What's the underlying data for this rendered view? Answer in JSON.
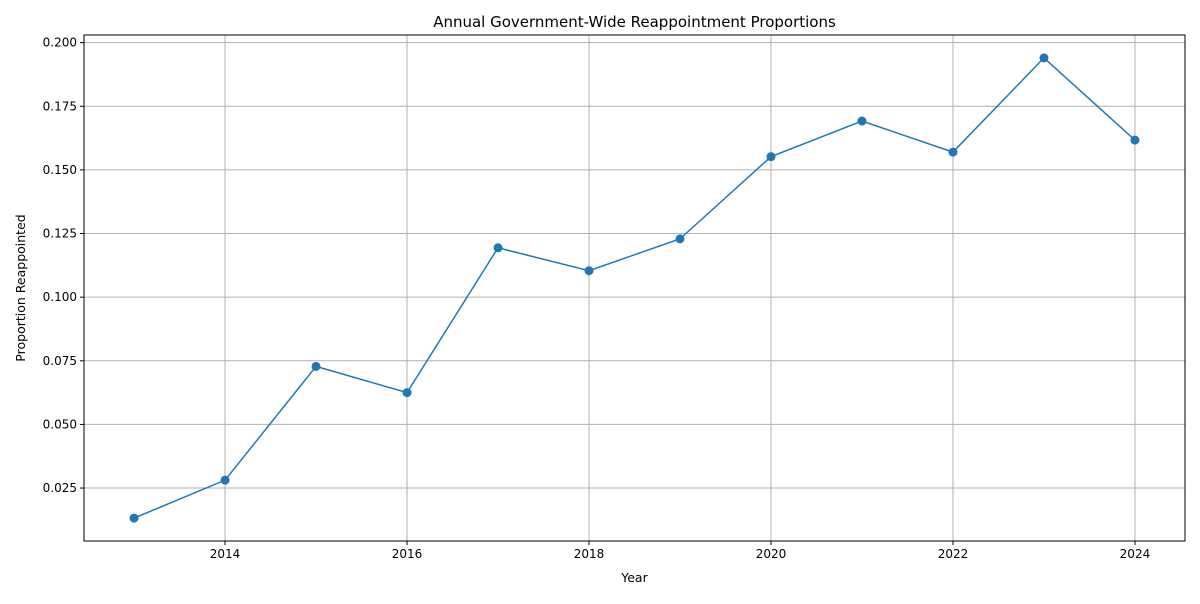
{
  "chart_data": {
    "type": "line",
    "title": "Annual Government-Wide Reappointment Proportions",
    "xlabel": "Year",
    "ylabel": "Proportion Reappointed",
    "x": [
      2013,
      2014,
      2015,
      2016,
      2017,
      2018,
      2019,
      2020,
      2021,
      2022,
      2023,
      2024
    ],
    "series": [
      {
        "values": [
          0.0132,
          0.0281,
          0.0728,
          0.0625,
          0.1194,
          0.1104,
          0.1229,
          0.1552,
          0.1692,
          0.157,
          0.194,
          0.1617
        ]
      }
    ],
    "xlim": [
      2012.45,
      2024.55
    ],
    "ylim": [
      0.0042,
      0.203
    ],
    "x_ticks": [
      2014,
      2016,
      2018,
      2020,
      2022,
      2024
    ],
    "x_tick_labels": [
      "2014",
      "2016",
      "2018",
      "2020",
      "2022",
      "2024"
    ],
    "y_ticks": [
      0.025,
      0.05,
      0.075,
      0.1,
      0.125,
      0.15,
      0.175,
      0.2
    ],
    "y_tick_labels": [
      "0.025",
      "0.050",
      "0.075",
      "0.100",
      "0.125",
      "0.150",
      "0.175",
      "0.200"
    ],
    "grid": true,
    "markers": "circle",
    "colors": {
      "line": "#1f77b4",
      "grid": "#b0b0b0",
      "axes": "#000000"
    }
  }
}
